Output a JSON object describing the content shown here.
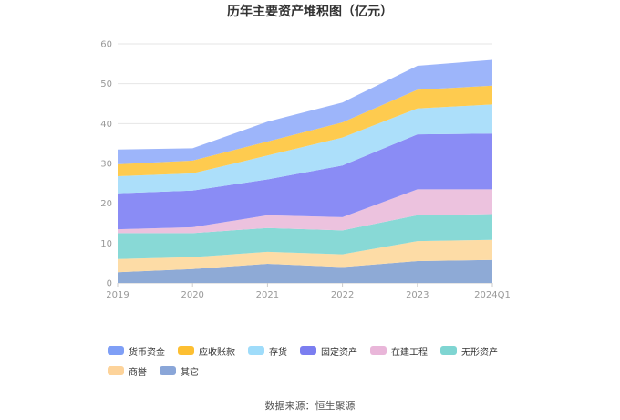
{
  "chart_data": {
    "type": "area",
    "stacked": true,
    "title": "历年主要资产堆积图（亿元）",
    "categories": [
      "2019",
      "2020",
      "2021",
      "2022",
      "2023",
      "2024Q1"
    ],
    "y_ticks": [
      "0",
      "10",
      "20",
      "30",
      "40",
      "50",
      "60"
    ],
    "ylim": [
      0,
      60
    ],
    "series": [
      {
        "name": "其它",
        "color": "#8eaad6",
        "values": [
          2.7,
          3.5,
          4.8,
          4.0,
          5.5,
          5.8
        ]
      },
      {
        "name": "商誉",
        "color": "#fddca6",
        "values": [
          3.3,
          3.0,
          3.0,
          3.2,
          5.0,
          5.0
        ]
      },
      {
        "name": "无形资产",
        "color": "#88d9d6",
        "values": [
          6.5,
          6.0,
          6.0,
          6.0,
          6.5,
          6.5
        ]
      },
      {
        "name": "在建工程",
        "color": "#ecc2de",
        "values": [
          1.0,
          1.5,
          3.2,
          3.3,
          6.5,
          6.2
        ]
      },
      {
        "name": "固定资产",
        "color": "#8a8cf5",
        "values": [
          9.0,
          9.2,
          9.0,
          13.0,
          13.8,
          14.0
        ]
      },
      {
        "name": "存货",
        "color": "#acdffa",
        "values": [
          4.3,
          4.3,
          6.0,
          7.0,
          6.5,
          7.3
        ]
      },
      {
        "name": "应收账款",
        "color": "#fecb4f",
        "values": [
          3.0,
          3.2,
          3.5,
          3.8,
          4.7,
          4.7
        ]
      },
      {
        "name": "货币资金",
        "color": "#9db5fa",
        "values": [
          3.7,
          3.1,
          5.0,
          5.0,
          6.0,
          6.5
        ]
      }
    ]
  },
  "legend": [
    {
      "name": "货币资金",
      "color": "#7f9ff6"
    },
    {
      "name": "应收账款",
      "color": "#fdbf32"
    },
    {
      "name": "存货",
      "color": "#9fdcfa"
    },
    {
      "name": "固定资产",
      "color": "#7b7ef0"
    },
    {
      "name": "在建工程",
      "color": "#e9b6d9"
    },
    {
      "name": "无形资产",
      "color": "#7fd5d2"
    },
    {
      "name": "商誉",
      "color": "#fdd39a"
    },
    {
      "name": "其它",
      "color": "#8aa6d8"
    }
  ],
  "source": "数据来源：恒生聚源"
}
